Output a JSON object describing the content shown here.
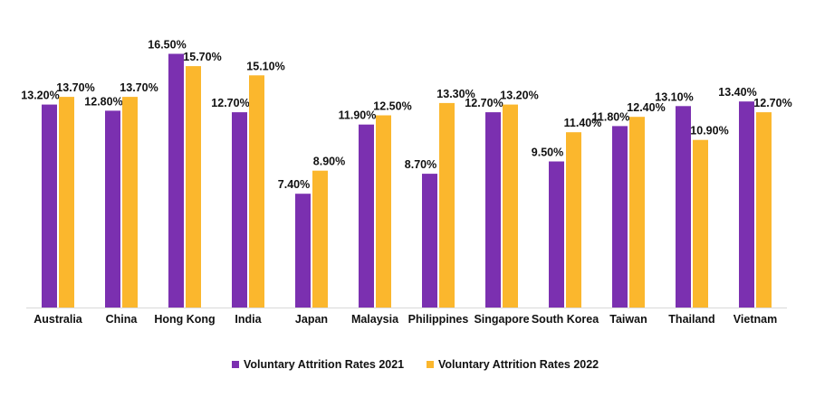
{
  "chart_data": {
    "type": "bar",
    "categories": [
      "Australia",
      "China",
      "Hong Kong",
      "India",
      "Japan",
      "Malaysia",
      "Philippines",
      "Singapore",
      "South Korea",
      "Taiwan",
      "Thailand",
      "Vietnam"
    ],
    "series": [
      {
        "name": "Voluntary Attrition Rates 2021",
        "color": "#7B30B0",
        "values": [
          13.2,
          12.8,
          16.5,
          12.7,
          7.4,
          11.9,
          8.7,
          12.7,
          9.5,
          11.8,
          13.1,
          13.4
        ]
      },
      {
        "name": "Voluntary Attrition Rates 2022",
        "color": "#FBB72D",
        "values": [
          13.7,
          13.7,
          15.7,
          15.1,
          8.9,
          12.5,
          13.3,
          13.2,
          11.4,
          12.4,
          10.9,
          12.7
        ]
      }
    ],
    "data_label_format": "0.00%",
    "ylim": [
      0,
      20
    ],
    "grid": false,
    "legend": "bottom",
    "title": "",
    "xlabel": "",
    "ylabel": ""
  }
}
